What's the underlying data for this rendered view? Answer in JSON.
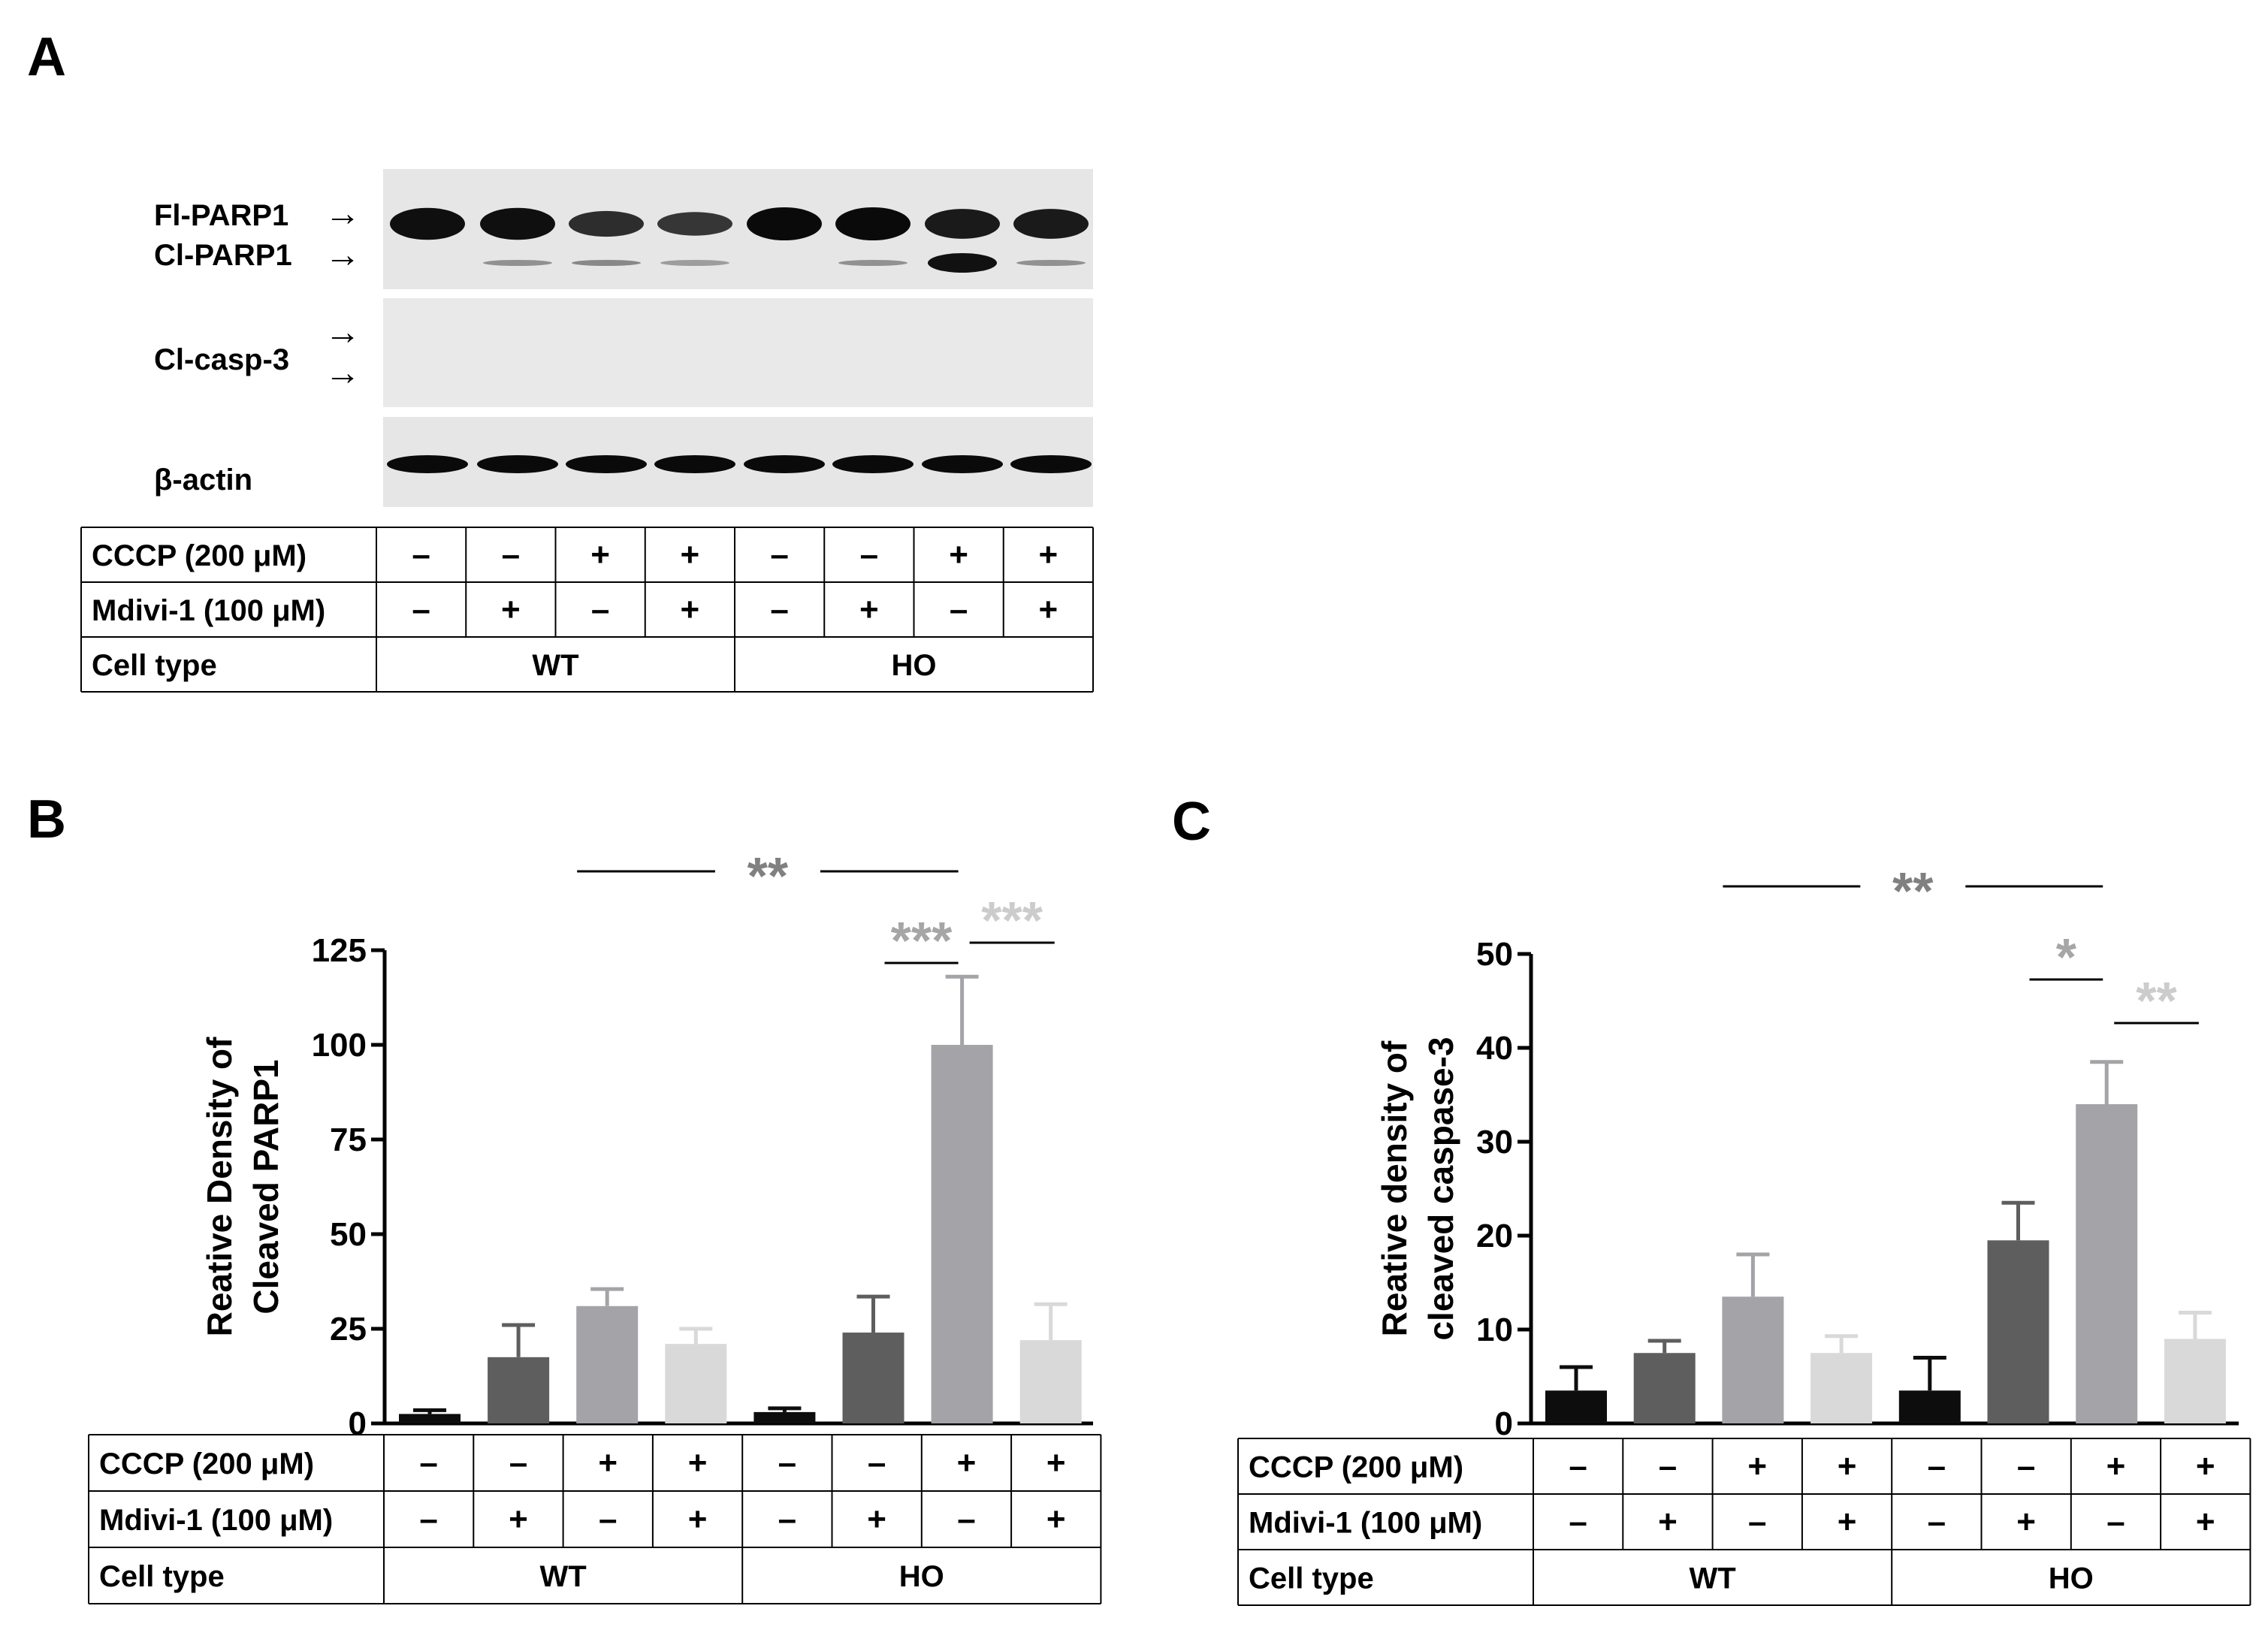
{
  "panel_labels": {
    "a": "A",
    "b": "B",
    "c": "C"
  },
  "blot": {
    "band_labels": {
      "fl_parp1": "Fl-PARP1",
      "cl_parp1": "Cl-PARP1",
      "cl_casp3": "Cl-casp-3",
      "beta_actin": "β-actin"
    },
    "arrow_glyph": "→",
    "fl_parp1_band_intensity": [
      0.95,
      0.95,
      0.65,
      0.55,
      1.0,
      1.0,
      0.85,
      0.85
    ],
    "cl_parp1_band_intensity": [
      0.0,
      0.2,
      0.25,
      0.12,
      0.0,
      0.2,
      1.0,
      0.2
    ],
    "actin_band_intensity": [
      1,
      1,
      1,
      1,
      1,
      1,
      1,
      1
    ]
  },
  "condition_table": {
    "row_labels": [
      "CCCP (200 μM)",
      "Mdivi-1 (100 μM)",
      "Cell type"
    ],
    "cccp": [
      "–",
      "–",
      "+",
      "+",
      "–",
      "–",
      "+",
      "+"
    ],
    "mdivi": [
      "–",
      "+",
      "–",
      "+",
      "–",
      "+",
      "–",
      "+"
    ],
    "cell_types": [
      "WT",
      "HO"
    ]
  },
  "colors": {
    "bars": [
      "#0d0d0d",
      "#5e5e5e",
      "#a4a4a8",
      "#d9d9d9",
      "#0d0d0d",
      "#5e5e5e",
      "#a4a4a8",
      "#d9d9d9"
    ],
    "sig_dark": "#808080",
    "sig_mid": "#a6a6a6",
    "sig_light": "#cccccc"
  },
  "chart_data": [
    {
      "panel": "B",
      "type": "bar",
      "ylabel_lines": [
        "Reative Density of",
        "Cleaved PARP1"
      ],
      "ylim": [
        0,
        125
      ],
      "yticks": [
        0,
        25,
        50,
        75,
        100,
        125
      ],
      "values": [
        2.5,
        17.5,
        31,
        21,
        3,
        24,
        100,
        22
      ],
      "errors": [
        1.0,
        8.5,
        4.5,
        4.0,
        1.0,
        9.5,
        18,
        9.5
      ],
      "significance": [
        {
          "label": "**",
          "tone": "dark"
        },
        {
          "label": "***",
          "tone": "mid"
        },
        {
          "label": "***",
          "tone": "light"
        }
      ]
    },
    {
      "panel": "C",
      "type": "bar",
      "ylabel_lines": [
        "Reative density of",
        "cleaved caspase-3"
      ],
      "ylim": [
        0,
        50
      ],
      "yticks": [
        0,
        10,
        20,
        30,
        40,
        50
      ],
      "values": [
        3.5,
        7.5,
        13.5,
        7.5,
        3.5,
        19.5,
        34,
        9
      ],
      "errors": [
        2.5,
        1.3,
        4.5,
        1.8,
        3.5,
        4.0,
        4.5,
        2.8
      ],
      "significance": [
        {
          "label": "**",
          "tone": "dark"
        },
        {
          "label": "*",
          "tone": "mid"
        },
        {
          "label": "**",
          "tone": "light"
        }
      ]
    }
  ]
}
